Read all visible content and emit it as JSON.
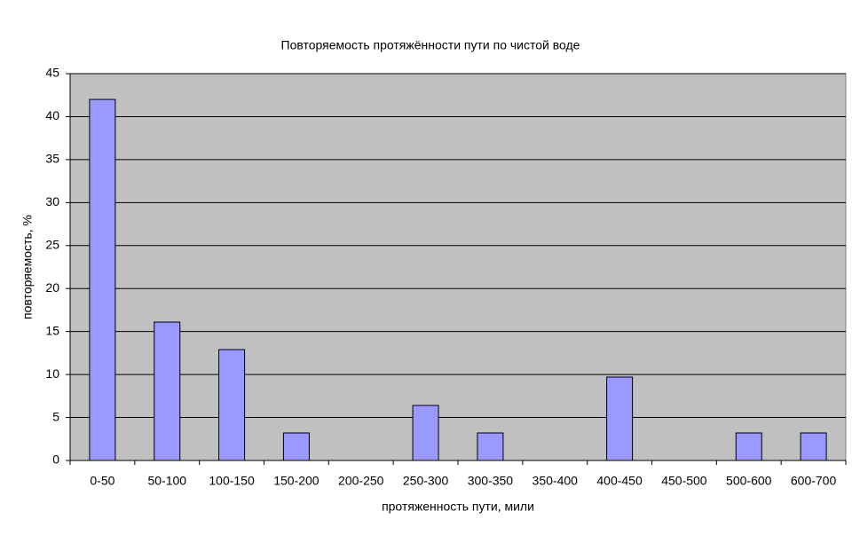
{
  "chart_data": {
    "type": "bar",
    "title": "Повторяемость протяжённости пути по чистой воде",
    "x_label": "протяженность пути, мили",
    "y_label": "повторяемость, %",
    "categories": [
      "0-50",
      "50-100",
      "100-150",
      "150-200",
      "200-250",
      "250-300",
      "300-350",
      "350-400",
      "400-450",
      "450-500",
      "500-600",
      "600-700"
    ],
    "values": [
      42,
      16.1,
      12.9,
      3.2,
      0,
      6.4,
      3.2,
      0,
      9.7,
      0,
      3.2,
      3.2
    ],
    "color": "#9999ff",
    "ylim": [
      0,
      45
    ],
    "yticks": [
      0,
      5,
      10,
      15,
      20,
      25,
      30,
      35,
      40,
      45
    ],
    "grid": true
  }
}
